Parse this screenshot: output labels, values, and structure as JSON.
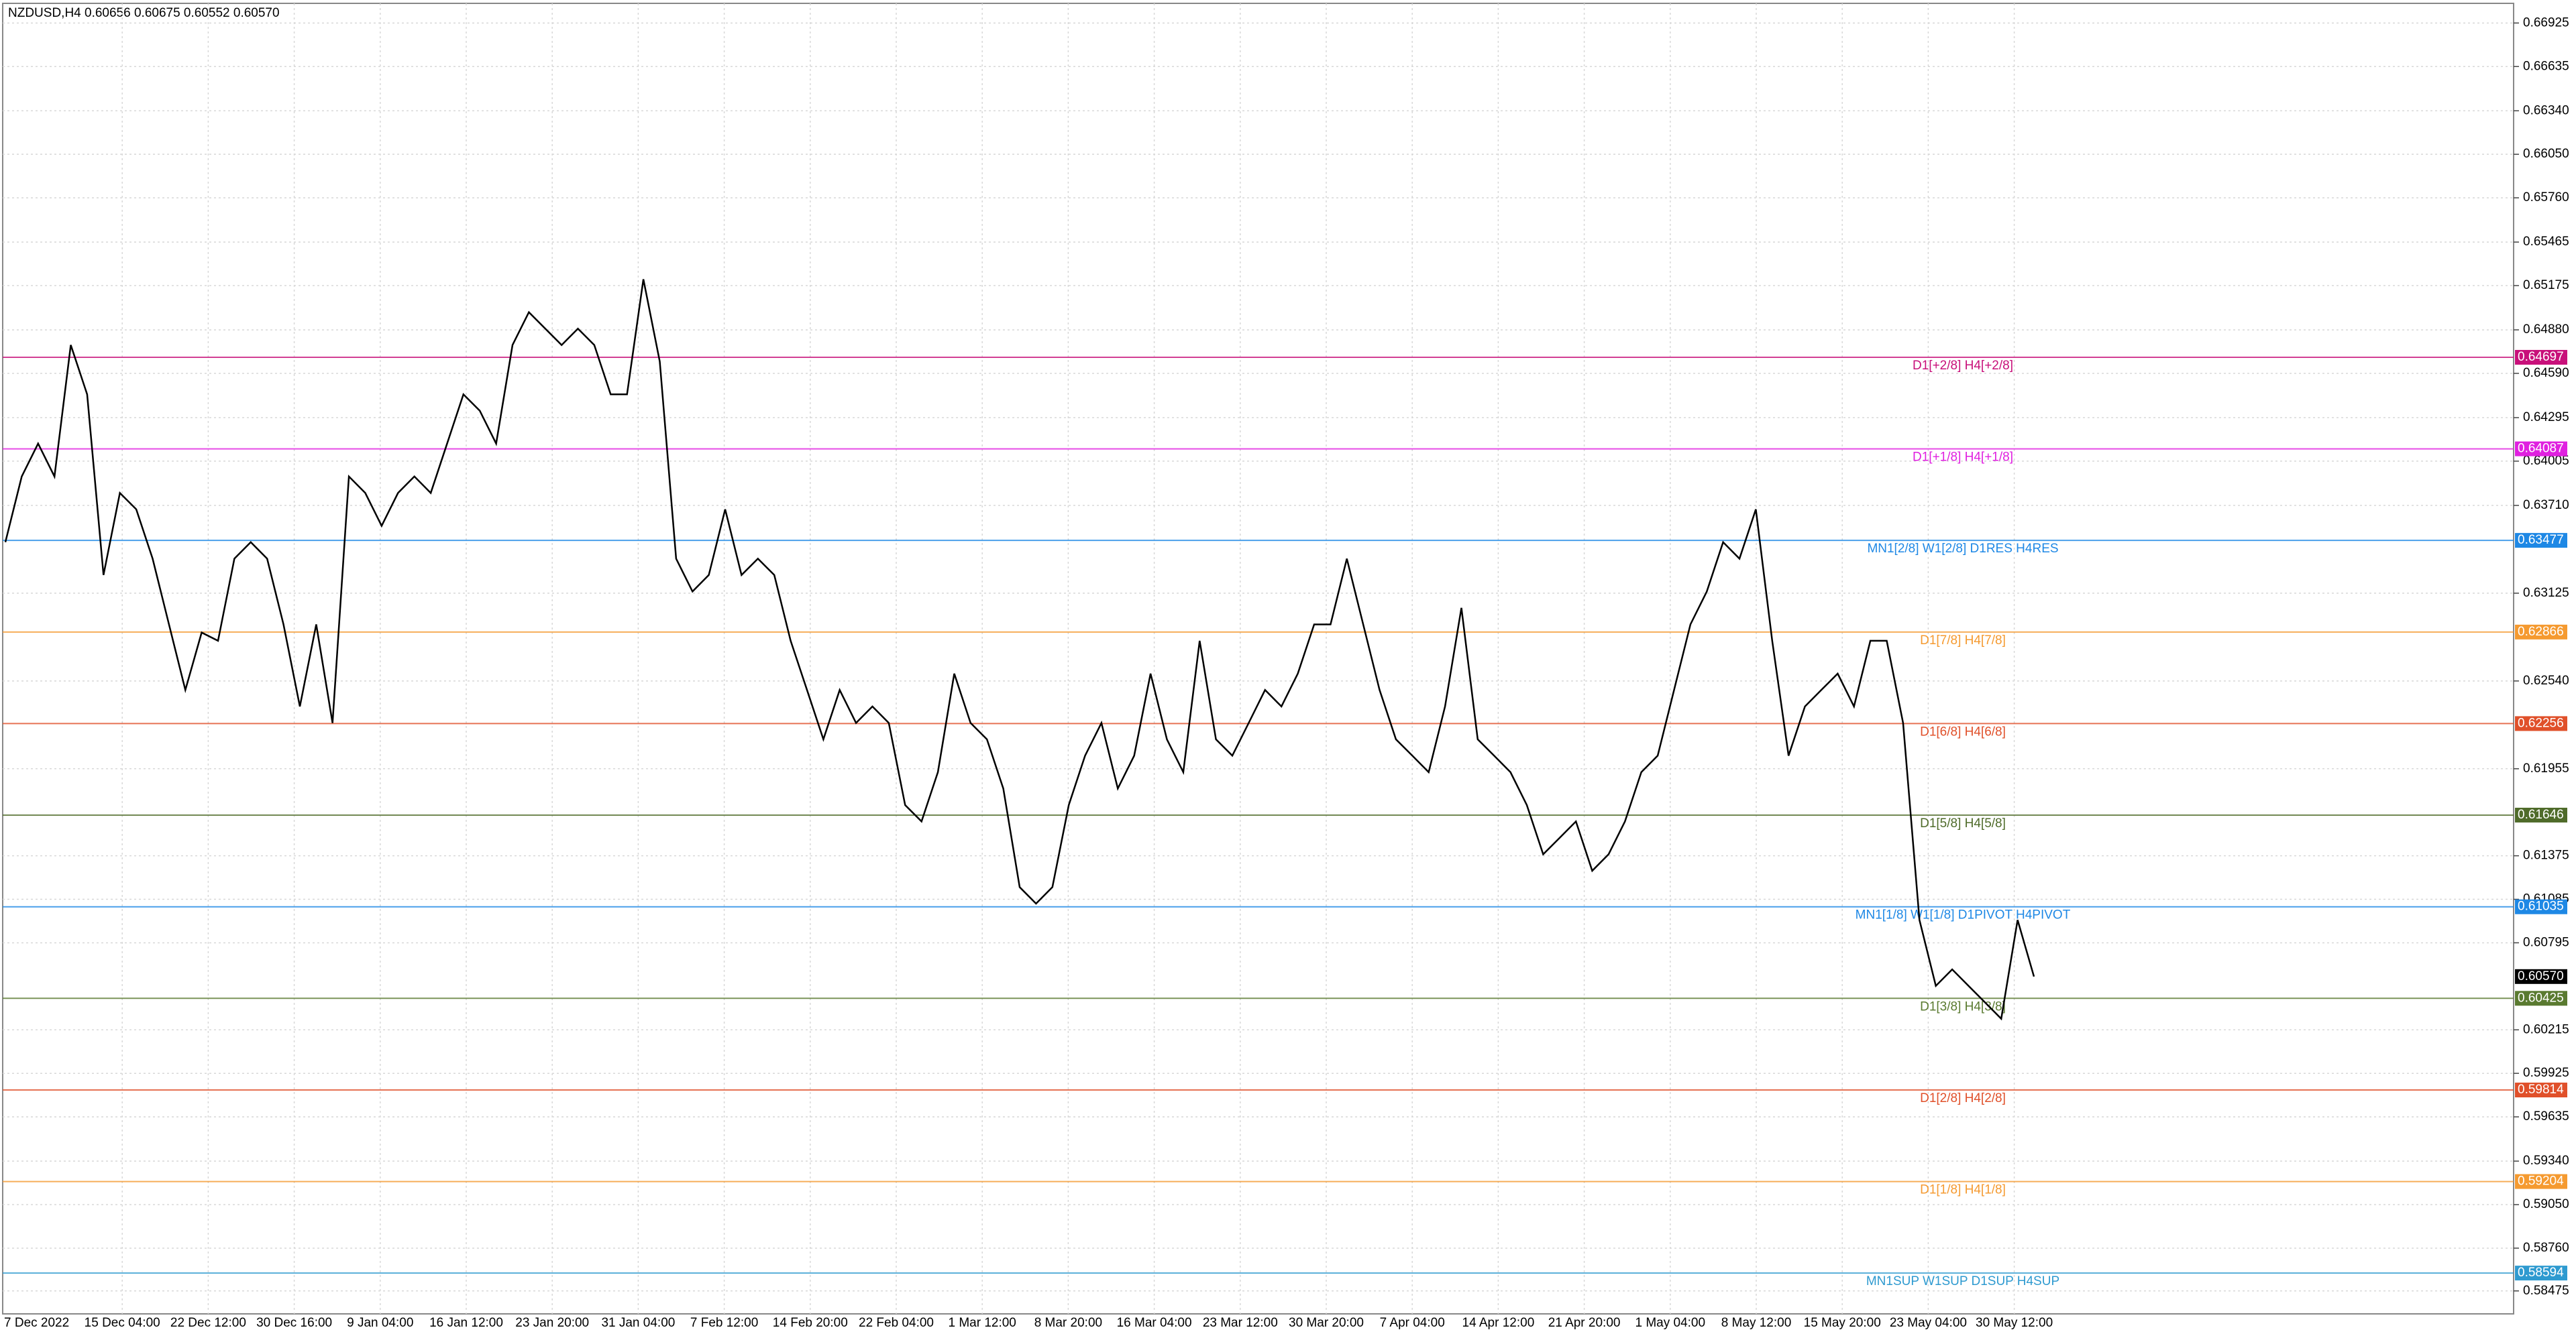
{
  "chart_data": {
    "type": "line",
    "title": "NZDUSD,H4  0.60656 0.60675 0.60552 0.60570",
    "ylim": [
      0.58322,
      0.67056
    ],
    "yticks": [
      0.66925,
      0.66635,
      {
        "value": 0.6634,
        "label": "0.66340"
      },
      {
        "value": 0.6605,
        "label": "0.66050"
      },
      {
        "value": 0.6576,
        "label": "0.65760"
      },
      0.65465,
      0.65175,
      {
        "value": 0.6488,
        "label": "0.64880"
      },
      {
        "value": 0.6459,
        "label": "0.64590"
      },
      0.64295,
      0.64005,
      {
        "value": 0.6371,
        "label": "0.63710"
      },
      0.63125,
      {
        "value": 0.6254,
        "label": "0.62540"
      },
      0.61955,
      0.61375,
      0.61085,
      0.60795,
      0.60215,
      0.59925,
      0.59635,
      {
        "value": 0.5934,
        "label": "0.59340"
      },
      {
        "value": 0.5905,
        "label": "0.59050"
      },
      {
        "value": 0.5876,
        "label": "0.58760"
      },
      0.58475
    ],
    "xticks": [
      "7 Dec 2022",
      "15 Dec 04:00",
      "22 Dec 12:00",
      "30 Dec 16:00",
      "9 Jan 04:00",
      "16 Jan 12:00",
      "23 Jan 20:00",
      "31 Jan 04:00",
      "7 Feb 12:00",
      "14 Feb 20:00",
      "22 Feb 04:00",
      "1 Mar 12:00",
      "8 Mar 20:00",
      "16 Mar 04:00",
      "23 Mar 12:00",
      "30 Mar 20:00",
      "7 Apr 04:00",
      "14 Apr 12:00",
      "21 Apr 20:00",
      "1 May 04:00",
      "8 May 12:00",
      "15 May 20:00",
      "23 May 04:00",
      "30 May 12:00"
    ],
    "grid": true,
    "series": [
      {
        "name": "NZDUSD",
        "color": "#000000",
        "values": [
          0.63465,
          0.63903,
          0.64122,
          0.63903,
          0.64779,
          0.6445,
          0.63246,
          0.63793,
          0.63684,
          0.63355,
          0.62917,
          0.6248,
          0.62863,
          0.62808,
          0.63355,
          0.63465,
          0.63355,
          0.62917,
          0.6237,
          0.62917,
          0.6226,
          0.63903,
          0.63793,
          0.63574,
          0.63793,
          0.63903,
          0.63793,
          0.64122,
          0.6445,
          0.64341,
          0.64122,
          0.64779,
          0.64998,
          0.64888,
          0.64779,
          0.64888,
          0.64779,
          0.6445,
          0.6445,
          0.65217,
          0.64669,
          0.63355,
          0.63136,
          0.63246,
          0.63684,
          0.63246,
          0.63355,
          0.63246,
          0.62808,
          0.6248,
          0.62151,
          0.6248,
          0.6226,
          0.6237,
          0.6226,
          0.61713,
          0.61604,
          0.61932,
          0.62589,
          0.6226,
          0.62151,
          0.61823,
          0.61166,
          0.61056,
          0.61166,
          0.61713,
          0.62042,
          0.6226,
          0.61823,
          0.62042,
          0.62589,
          0.62151,
          0.61932,
          0.62808,
          0.62151,
          0.62042,
          0.6226,
          0.6248,
          0.6237,
          0.62589,
          0.62917,
          0.62917,
          0.63355,
          0.62917,
          0.6248,
          0.62151,
          0.62042,
          0.61932,
          0.6237,
          0.63027,
          0.62151,
          0.62042,
          0.61932,
          0.61713,
          0.61385,
          0.61494,
          0.61604,
          0.61275,
          0.61385,
          0.61604,
          0.61932,
          0.62042,
          0.6248,
          0.62917,
          0.63136,
          0.63465,
          0.63355,
          0.63684,
          0.62808,
          0.62042,
          0.6237,
          0.6248,
          0.62589,
          0.6237,
          0.62808,
          0.62808,
          0.6226,
          0.60947,
          0.60508,
          0.60618,
          0.60508,
          0.60399,
          0.60289,
          0.60947,
          0.6057
        ]
      }
    ],
    "levels": [
      {
        "name": "D1[+2/8] H4[+2/8]",
        "value": 0.64697,
        "color": "#c8107a"
      },
      {
        "name": "D1[+1/8] H4[+1/8]",
        "value": 0.64087,
        "color": "#e020e0"
      },
      {
        "name": "MN1[2/8] W1[2/8] D1RES H4RES",
        "value": 0.63477,
        "color": "#1e88e5"
      },
      {
        "name": "D1[7/8] H4[7/8]",
        "value": 0.62866,
        "color": "#f59a30"
      },
      {
        "name": "D1[6/8] H4[6/8]",
        "value": 0.62256,
        "color": "#e0502a"
      },
      {
        "name": "D1[5/8] H4[5/8]",
        "value": 0.61646,
        "color": "#4f6b2a"
      },
      {
        "name": "MN1[1/8] W1[1/8] D1PIVOT H4PIVOT",
        "value": 0.61035,
        "color": "#1e88e5"
      },
      {
        "name": "D1[3/8] H4[3/8]",
        "value": 0.60425,
        "color": "#5a7a30"
      },
      {
        "name": "D1[2/8] H4[2/8]",
        "value": 0.59814,
        "color": "#e0502a"
      },
      {
        "name": "D1[1/8] H4[1/8]",
        "value": 0.59204,
        "color": "#f59a30"
      },
      {
        "name": "MN1SUP W1SUP D1SUP H4SUP",
        "value": 0.58594,
        "color": "#2e9ad0"
      }
    ],
    "current_price": {
      "value": 0.6057,
      "label": "0.60570"
    }
  }
}
